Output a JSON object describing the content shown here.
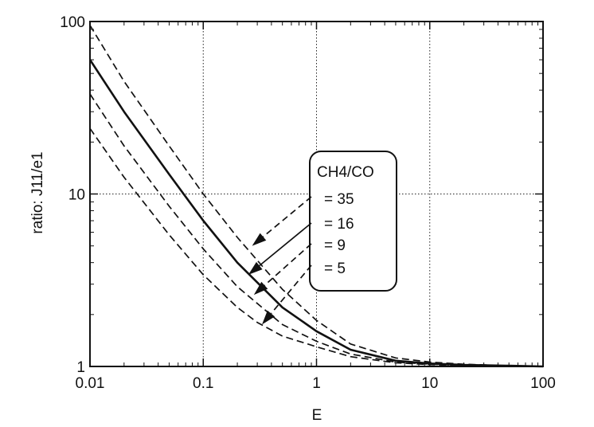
{
  "chart_data": {
    "type": "line",
    "xlabel": "E",
    "ylabel": "ratio:  J11/e1",
    "xscale": "log",
    "yscale": "log",
    "xlim": [
      0.01,
      100
    ],
    "ylim": [
      1,
      100
    ],
    "grid": true,
    "x_ticks": [
      "0.01",
      "0.1",
      "1",
      "10",
      "100"
    ],
    "y_ticks": [
      "1",
      "10",
      "100"
    ],
    "legend_title": "CH4/CO",
    "legend_placement": "center-right",
    "series": [
      {
        "name": "= 35",
        "style": "dashed",
        "x": [
          0.01,
          0.02,
          0.05,
          0.1,
          0.2,
          0.5,
          1,
          2,
          5,
          10,
          20,
          50,
          100
        ],
        "y": [
          95,
          45,
          19,
          10,
          5.6,
          2.8,
          1.85,
          1.35,
          1.12,
          1.06,
          1.03,
          1.01,
          1.0
        ]
      },
      {
        "name": "= 16",
        "style": "solid",
        "x": [
          0.01,
          0.02,
          0.05,
          0.1,
          0.2,
          0.5,
          1,
          2,
          5,
          10,
          20,
          50,
          100
        ],
        "y": [
          60,
          30,
          13,
          7,
          4,
          2.2,
          1.6,
          1.25,
          1.08,
          1.04,
          1.02,
          1.01,
          1.0
        ]
      },
      {
        "name": "= 9",
        "style": "dashed",
        "x": [
          0.01,
          0.02,
          0.05,
          0.1,
          0.2,
          0.5,
          1,
          2,
          5,
          10,
          20,
          50,
          100
        ],
        "y": [
          38,
          19,
          8.5,
          4.8,
          2.9,
          1.75,
          1.4,
          1.18,
          1.06,
          1.03,
          1.015,
          1.005,
          1.0
        ]
      },
      {
        "name": "= 5",
        "style": "dashed",
        "x": [
          0.01,
          0.02,
          0.05,
          0.1,
          0.2,
          0.3,
          0.5,
          1,
          2,
          5,
          10,
          20,
          50,
          100
        ],
        "y": [
          24,
          12.5,
          5.8,
          3.4,
          2.2,
          1.8,
          1.5,
          1.3,
          1.14,
          1.05,
          1.025,
          1.01,
          1.003,
          1.0
        ]
      }
    ],
    "annotations": [
      {
        "series": "= 35",
        "arrow_to_data": [
          0.27,
          5.0
        ]
      },
      {
        "series": "= 16",
        "arrow_to_data": [
          0.25,
          3.4
        ]
      },
      {
        "series": "= 9",
        "arrow_to_data": [
          0.28,
          2.6
        ]
      },
      {
        "series": "= 5",
        "arrow_to_data": [
          0.33,
          1.75
        ]
      }
    ]
  }
}
